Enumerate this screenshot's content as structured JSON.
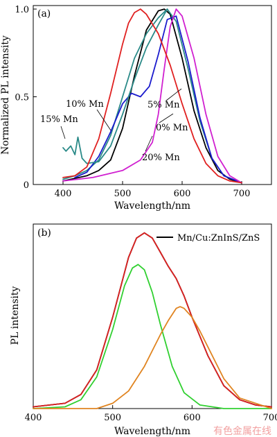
{
  "chart_data": [
    {
      "type": "line",
      "panel_label": "(a)",
      "xlabel": "Wavelength/nm",
      "ylabel": "Normalized PL intensity",
      "xlim": [
        350,
        750
      ],
      "ylim": [
        0,
        1.02
      ],
      "xticks": [
        400,
        500,
        600,
        700
      ],
      "yticks": [
        {
          "v": 0,
          "label": "0"
        },
        {
          "v": 0.5,
          "label": "0.5"
        },
        {
          "v": 1.0,
          "label": "1.0"
        }
      ],
      "series": [
        {
          "name": "0% Mn",
          "color": "#000000",
          "x": [
            400,
            440,
            460,
            480,
            500,
            520,
            540,
            560,
            570,
            580,
            600,
            620,
            640,
            660,
            680,
            700
          ],
          "y": [
            0.02,
            0.05,
            0.08,
            0.14,
            0.32,
            0.62,
            0.88,
            0.99,
            1.0,
            0.97,
            0.72,
            0.42,
            0.21,
            0.08,
            0.03,
            0.01
          ]
        },
        {
          "name": "5% Mn",
          "color": "#2a8a88",
          "x": [
            400,
            420,
            440,
            460,
            480,
            500,
            520,
            540,
            560,
            575,
            590,
            610,
            630,
            650,
            670,
            700
          ],
          "y": [
            0.03,
            0.05,
            0.08,
            0.14,
            0.28,
            0.5,
            0.72,
            0.86,
            0.95,
            1.0,
            0.93,
            0.66,
            0.36,
            0.15,
            0.05,
            0.01
          ]
        },
        {
          "name": "10% Mn",
          "color": "#1a1acd",
          "x": [
            420,
            440,
            460,
            480,
            500,
            515,
            530,
            545,
            560,
            575,
            590,
            610,
            630,
            650,
            670,
            700
          ],
          "y": [
            0.04,
            0.07,
            0.16,
            0.3,
            0.46,
            0.52,
            0.5,
            0.56,
            0.74,
            0.94,
            0.96,
            0.7,
            0.38,
            0.15,
            0.05,
            0.01
          ]
        },
        {
          "name": "15% Mn",
          "color": "#2a8a88",
          "x": [
            400,
            405,
            413,
            420,
            425,
            432,
            440,
            460,
            480,
            500,
            520,
            540,
            560,
            575
          ],
          "y": [
            0.21,
            0.19,
            0.22,
            0.17,
            0.27,
            0.15,
            0.12,
            0.13,
            0.22,
            0.4,
            0.6,
            0.78,
            0.91,
            1.0
          ]
        },
        {
          "name": "20% Mn",
          "color": "#d020d0",
          "x": [
            400,
            450,
            500,
            530,
            550,
            560,
            570,
            580,
            590,
            600,
            620,
            640,
            660,
            680,
            700
          ],
          "y": [
            0.02,
            0.04,
            0.08,
            0.14,
            0.24,
            0.4,
            0.66,
            0.9,
            1.0,
            0.96,
            0.72,
            0.4,
            0.16,
            0.05,
            0.01
          ]
        },
        {
          "name": "",
          "color": "#e02020",
          "x": [
            400,
            420,
            440,
            460,
            480,
            500,
            510,
            520,
            530,
            540,
            560,
            580,
            600,
            620,
            640,
            660,
            680,
            700
          ],
          "y": [
            0.04,
            0.05,
            0.1,
            0.26,
            0.52,
            0.8,
            0.92,
            0.98,
            1.0,
            0.97,
            0.86,
            0.68,
            0.46,
            0.26,
            0.12,
            0.05,
            0.02,
            0.01
          ]
        }
      ],
      "annotations": [
        {
          "text": "10% Mn"
        },
        {
          "text": "15% Mn"
        },
        {
          "text": "5% Mn"
        },
        {
          "text": "0% Mn"
        },
        {
          "text": "20% Mn"
        }
      ]
    },
    {
      "type": "line",
      "panel_label": "(b)",
      "xlabel": "Wavelength/nm",
      "ylabel": "PL intensity",
      "xlim": [
        400,
        700
      ],
      "ylim": [
        0,
        1.05
      ],
      "xticks": [
        400,
        500,
        600,
        700
      ],
      "legend": {
        "label": "Mn/Cu:ZnInS/ZnS",
        "position": "top-right"
      },
      "series": [
        {
          "name": "Mn/Cu:ZnInS/ZnS",
          "color": "#000000",
          "x": [
            400,
            440,
            460,
            480,
            500,
            520,
            530,
            540,
            550,
            560,
            570,
            580,
            590,
            600,
            620,
            640,
            660,
            680,
            700
          ],
          "y": [
            0.01,
            0.03,
            0.08,
            0.22,
            0.52,
            0.86,
            0.97,
            1.0,
            0.97,
            0.89,
            0.81,
            0.74,
            0.64,
            0.52,
            0.3,
            0.13,
            0.05,
            0.02,
            0.01
          ]
        },
        {
          "name": "",
          "color": "#dd2020",
          "x": [
            400,
            440,
            460,
            480,
            500,
            520,
            530,
            540,
            550,
            560,
            570,
            580,
            590,
            600,
            620,
            640,
            660,
            680,
            700
          ],
          "y": [
            0.01,
            0.03,
            0.08,
            0.22,
            0.52,
            0.86,
            0.97,
            1.0,
            0.97,
            0.89,
            0.81,
            0.74,
            0.64,
            0.52,
            0.3,
            0.13,
            0.05,
            0.02,
            0.01
          ]
        },
        {
          "name": "",
          "color": "#30d030",
          "x": [
            400,
            440,
            460,
            480,
            500,
            515,
            525,
            532,
            540,
            550,
            560,
            575,
            590,
            610,
            640,
            700
          ],
          "y": [
            0.0,
            0.01,
            0.05,
            0.18,
            0.45,
            0.7,
            0.8,
            0.82,
            0.79,
            0.66,
            0.48,
            0.24,
            0.09,
            0.02,
            0.0,
            0.0
          ]
        },
        {
          "name": "",
          "color": "#e08420",
          "x": [
            400,
            480,
            500,
            520,
            540,
            560,
            570,
            580,
            585,
            590,
            600,
            610,
            620,
            640,
            660,
            700
          ],
          "y": [
            0.0,
            0.0,
            0.03,
            0.1,
            0.24,
            0.42,
            0.5,
            0.57,
            0.58,
            0.57,
            0.52,
            0.44,
            0.35,
            0.17,
            0.06,
            0.0
          ]
        }
      ]
    }
  ],
  "watermark": "有色金属在线"
}
